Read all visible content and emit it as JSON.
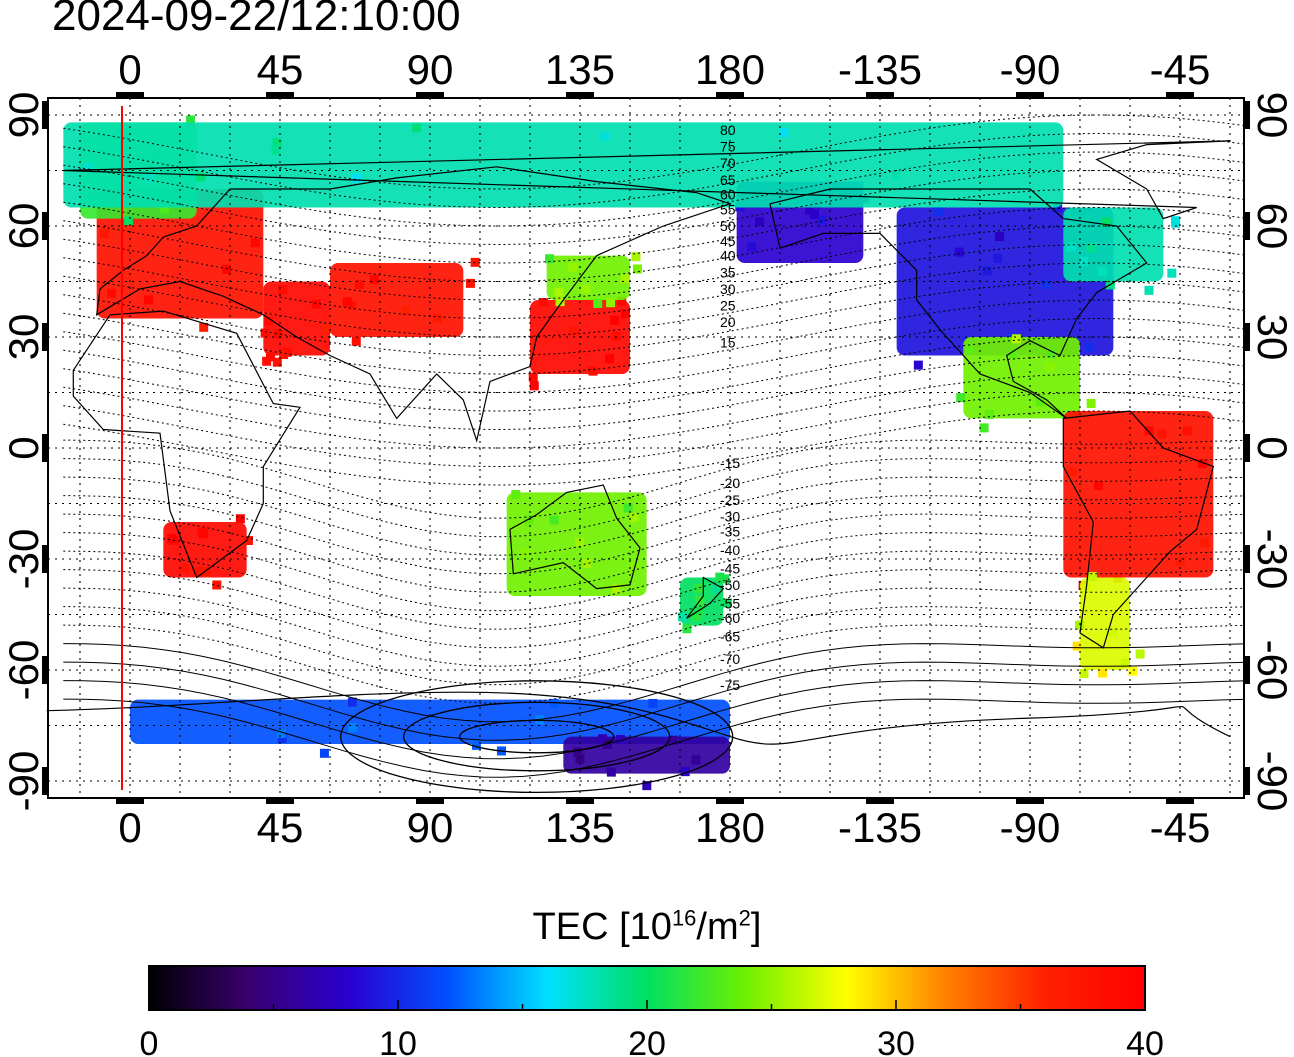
{
  "timestamp": "2024-09-22/12:10:00",
  "map": {
    "top_ticks": [
      "0",
      "45",
      "90",
      "135",
      "180",
      "-135",
      "-90",
      "-45"
    ],
    "bottom_ticks": [
      "0",
      "45",
      "90",
      "135",
      "180",
      "-135",
      "-90",
      "-45"
    ],
    "left_ticks": [
      "90",
      "60",
      "30",
      "0",
      "-30",
      "-60",
      "-90"
    ],
    "right_ticks": [
      "90",
      "60",
      "30",
      "0",
      "-30",
      "-60",
      "-90"
    ],
    "grid": true,
    "red_meridian_lon": -2,
    "contour_labels": [
      "80",
      "75",
      "70",
      "65",
      "60",
      "55",
      "50",
      "45",
      "40",
      "35",
      "30",
      "25",
      "20",
      "15",
      "-15",
      "-20",
      "-25",
      "-30",
      "-35",
      "-40",
      "-45",
      "-50",
      "-55",
      "-60",
      "-65",
      "-70",
      "-75"
    ],
    "tec_patches": [
      {
        "region": "Europe",
        "lon": [
          -10,
          40
        ],
        "lat": [
          35,
          70
        ],
        "tec": 38
      },
      {
        "region": "North Atlantic / Arctic",
        "lon": [
          -15,
          20
        ],
        "lat": [
          62,
          88
        ],
        "tec": 22
      },
      {
        "region": "Africa south",
        "lon": [
          10,
          35
        ],
        "lat": [
          -35,
          -20
        ],
        "tec": 39
      },
      {
        "region": "Middle East",
        "lon": [
          40,
          60
        ],
        "lat": [
          25,
          45
        ],
        "tec": 39
      },
      {
        "region": "Central Asia",
        "lon": [
          60,
          100
        ],
        "lat": [
          30,
          50
        ],
        "tec": 38
      },
      {
        "region": "Japan / Korea",
        "lon": [
          120,
          150
        ],
        "lat": [
          20,
          40
        ],
        "tec": 39
      },
      {
        "region": "North Asia",
        "lon": [
          125,
          150
        ],
        "lat": [
          40,
          52
        ],
        "tec": 24
      },
      {
        "region": "Australia",
        "lon": [
          113,
          155
        ],
        "lat": [
          -40,
          -12
        ],
        "tec": 24
      },
      {
        "region": "New Zealand",
        "lon": [
          165,
          178
        ],
        "lat": [
          -48,
          -35
        ],
        "tec": 20
      },
      {
        "region": "Alaska / NE Pacific",
        "lon": [
          -178,
          -140
        ],
        "lat": [
          50,
          72
        ],
        "tec": 8
      },
      {
        "region": "North America",
        "lon": [
          -130,
          -65
        ],
        "lat": [
          25,
          65
        ],
        "tec": 9
      },
      {
        "region": "Eastern Canada",
        "lon": [
          -80,
          -50
        ],
        "lat": [
          45,
          65
        ],
        "tec": 18
      },
      {
        "region": "Greenland / Arctic",
        "lon": [
          -80,
          -20
        ],
        "lat": [
          65,
          88
        ],
        "tec": 18
      },
      {
        "region": "Central America",
        "lon": [
          -110,
          -75
        ],
        "lat": [
          8,
          30
        ],
        "tec": 24
      },
      {
        "region": "South America",
        "lon": [
          -80,
          -35
        ],
        "lat": [
          -35,
          10
        ],
        "tec": 38
      },
      {
        "region": "Patagonia",
        "lon": [
          -75,
          -60
        ],
        "lat": [
          -60,
          -35
        ],
        "tec": 27
      },
      {
        "region": "Antarctic coast",
        "lon": [
          -180,
          0
        ],
        "lat": [
          -80,
          -68
        ],
        "tec": 12
      },
      {
        "region": "Antarctica",
        "lon": [
          130,
          180
        ],
        "lat": [
          -88,
          -78
        ],
        "tec": 6
      }
    ]
  },
  "colorbar": {
    "title_prefix": "TEC  [10",
    "title_exp1": "16",
    "title_mid": "/m",
    "title_exp2": "2",
    "title_suffix": "]",
    "min": 0,
    "max": 40,
    "tick_labels": [
      "0",
      "10",
      "20",
      "30",
      "40"
    ],
    "colors": [
      "#000000",
      "#3a0070",
      "#2a00d0",
      "#0050ff",
      "#00e0ff",
      "#00e060",
      "#70f000",
      "#ffff00",
      "#ff8000",
      "#ff2000",
      "#ff0000"
    ]
  }
}
